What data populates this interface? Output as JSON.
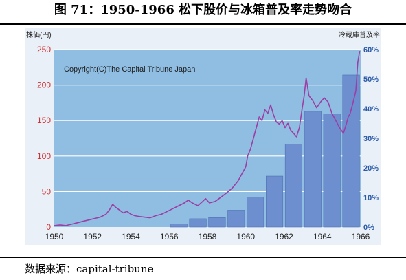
{
  "figure_title": "图 71：1950-1966 松下股价与冰箱普及率走势吻合",
  "source_text": "数据来源：capital-tribune",
  "chart_data": {
    "type": "bar+line",
    "copyright": "Copyright(C)The Capital Tribune Japan",
    "left_axis": {
      "label": "株価(円)",
      "ticks": [
        "0",
        "50",
        "100",
        "150",
        "200",
        "250"
      ],
      "range": [
        0,
        250
      ]
    },
    "right_axis": {
      "label": "冷蔵庫普及率",
      "ticks": [
        "0%",
        "10%",
        "20%",
        "30%",
        "40%",
        "50%",
        "60%"
      ],
      "range": [
        0,
        60
      ]
    },
    "x_axis": {
      "ticks": [
        "1950",
        "1952",
        "1954",
        "1956",
        "1958",
        "1960",
        "1962",
        "1964",
        "1966"
      ],
      "range": [
        1950,
        1966
      ]
    },
    "bars": {
      "years": [
        1956.5,
        1957.5,
        1958.5,
        1959.5,
        1960.5,
        1961.5,
        1962.5,
        1963.5,
        1964.5,
        1965.5
      ],
      "values": [
        1,
        2.8,
        3.2,
        5.7,
        10.1,
        17.2,
        28.0,
        39.1,
        38.2,
        51.4
      ]
    },
    "line": {
      "x": [
        1950.0,
        1950.3,
        1950.6,
        1950.9,
        1951.2,
        1951.5,
        1951.8,
        1952.1,
        1952.4,
        1952.7,
        1952.9,
        1953.05,
        1953.2,
        1953.4,
        1953.6,
        1953.8,
        1954.0,
        1954.2,
        1954.4,
        1954.7,
        1955.0,
        1955.3,
        1955.6,
        1955.9,
        1956.2,
        1956.5,
        1956.8,
        1957.0,
        1957.2,
        1957.5,
        1957.75,
        1957.9,
        1958.1,
        1958.4,
        1958.7,
        1959.0,
        1959.3,
        1959.6,
        1959.8,
        1960.0,
        1960.1,
        1960.25,
        1960.4,
        1960.55,
        1960.7,
        1960.85,
        1961.0,
        1961.15,
        1961.3,
        1961.45,
        1961.6,
        1961.75,
        1961.9,
        1962.05,
        1962.2,
        1962.35,
        1962.5,
        1962.65,
        1962.8,
        1962.95,
        1963.05,
        1963.15,
        1963.3,
        1963.5,
        1963.7,
        1963.9,
        1964.1,
        1964.3,
        1964.5,
        1964.7,
        1964.9,
        1965.1,
        1965.25,
        1965.35,
        1965.45,
        1965.6,
        1965.75,
        1965.85,
        1965.95
      ],
      "values": [
        2,
        3,
        2,
        4,
        6,
        8,
        10,
        12,
        14,
        18,
        25,
        32,
        28,
        24,
        20,
        22,
        18,
        16,
        15,
        14,
        13,
        16,
        18,
        22,
        26,
        30,
        34,
        38,
        34,
        30,
        36,
        40,
        34,
        36,
        42,
        48,
        55,
        65,
        75,
        85,
        100,
        110,
        125,
        140,
        155,
        150,
        165,
        160,
        172,
        158,
        148,
        145,
        150,
        140,
        146,
        136,
        132,
        127,
        140,
        168,
        185,
        210,
        185,
        178,
        168,
        176,
        182,
        176,
        160,
        150,
        140,
        132,
        145,
        155,
        160,
        175,
        192,
        232,
        248
      ]
    }
  }
}
